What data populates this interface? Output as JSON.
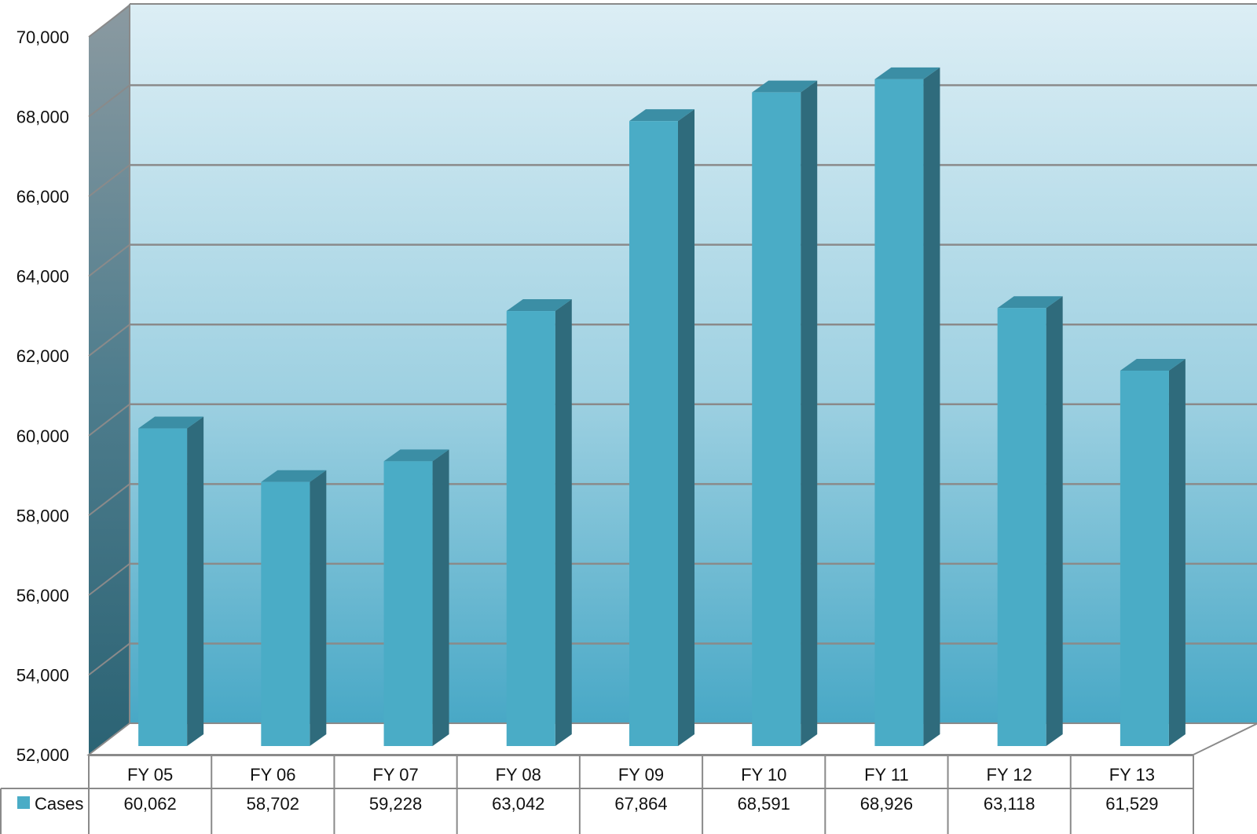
{
  "chart_data": {
    "type": "bar",
    "style": "3d-column-with-data-table",
    "categories": [
      "FY 05",
      "FY 06",
      "FY 07",
      "FY 08",
      "FY 09",
      "FY 10",
      "FY 11",
      "FY 12",
      "FY 13"
    ],
    "series": [
      {
        "name": "Cases",
        "values": [
          60062,
          58702,
          59228,
          63042,
          67864,
          68591,
          68926,
          63118,
          61529
        ],
        "labels": [
          "60,062",
          "58,702",
          "59,228",
          "63,042",
          "67,864",
          "68,591",
          "68,926",
          "63,118",
          "61,529"
        ]
      }
    ],
    "y_ticks": [
      "52,000",
      "54,000",
      "56,000",
      "58,000",
      "60,000",
      "62,000",
      "64,000",
      "66,000",
      "68,000",
      "70,000"
    ],
    "ylim": [
      52000,
      70000
    ],
    "grid": true,
    "data_table": true,
    "colors": {
      "bar_front": "#4aacc6",
      "bar_side": "#2f6b7c",
      "bar_top": "#3b8ea5",
      "wall_top": "#dceef5",
      "wall_bottom": "#4aa9c7",
      "gridline": "#8a8a8a",
      "legend_key": "#4aacc6"
    }
  }
}
